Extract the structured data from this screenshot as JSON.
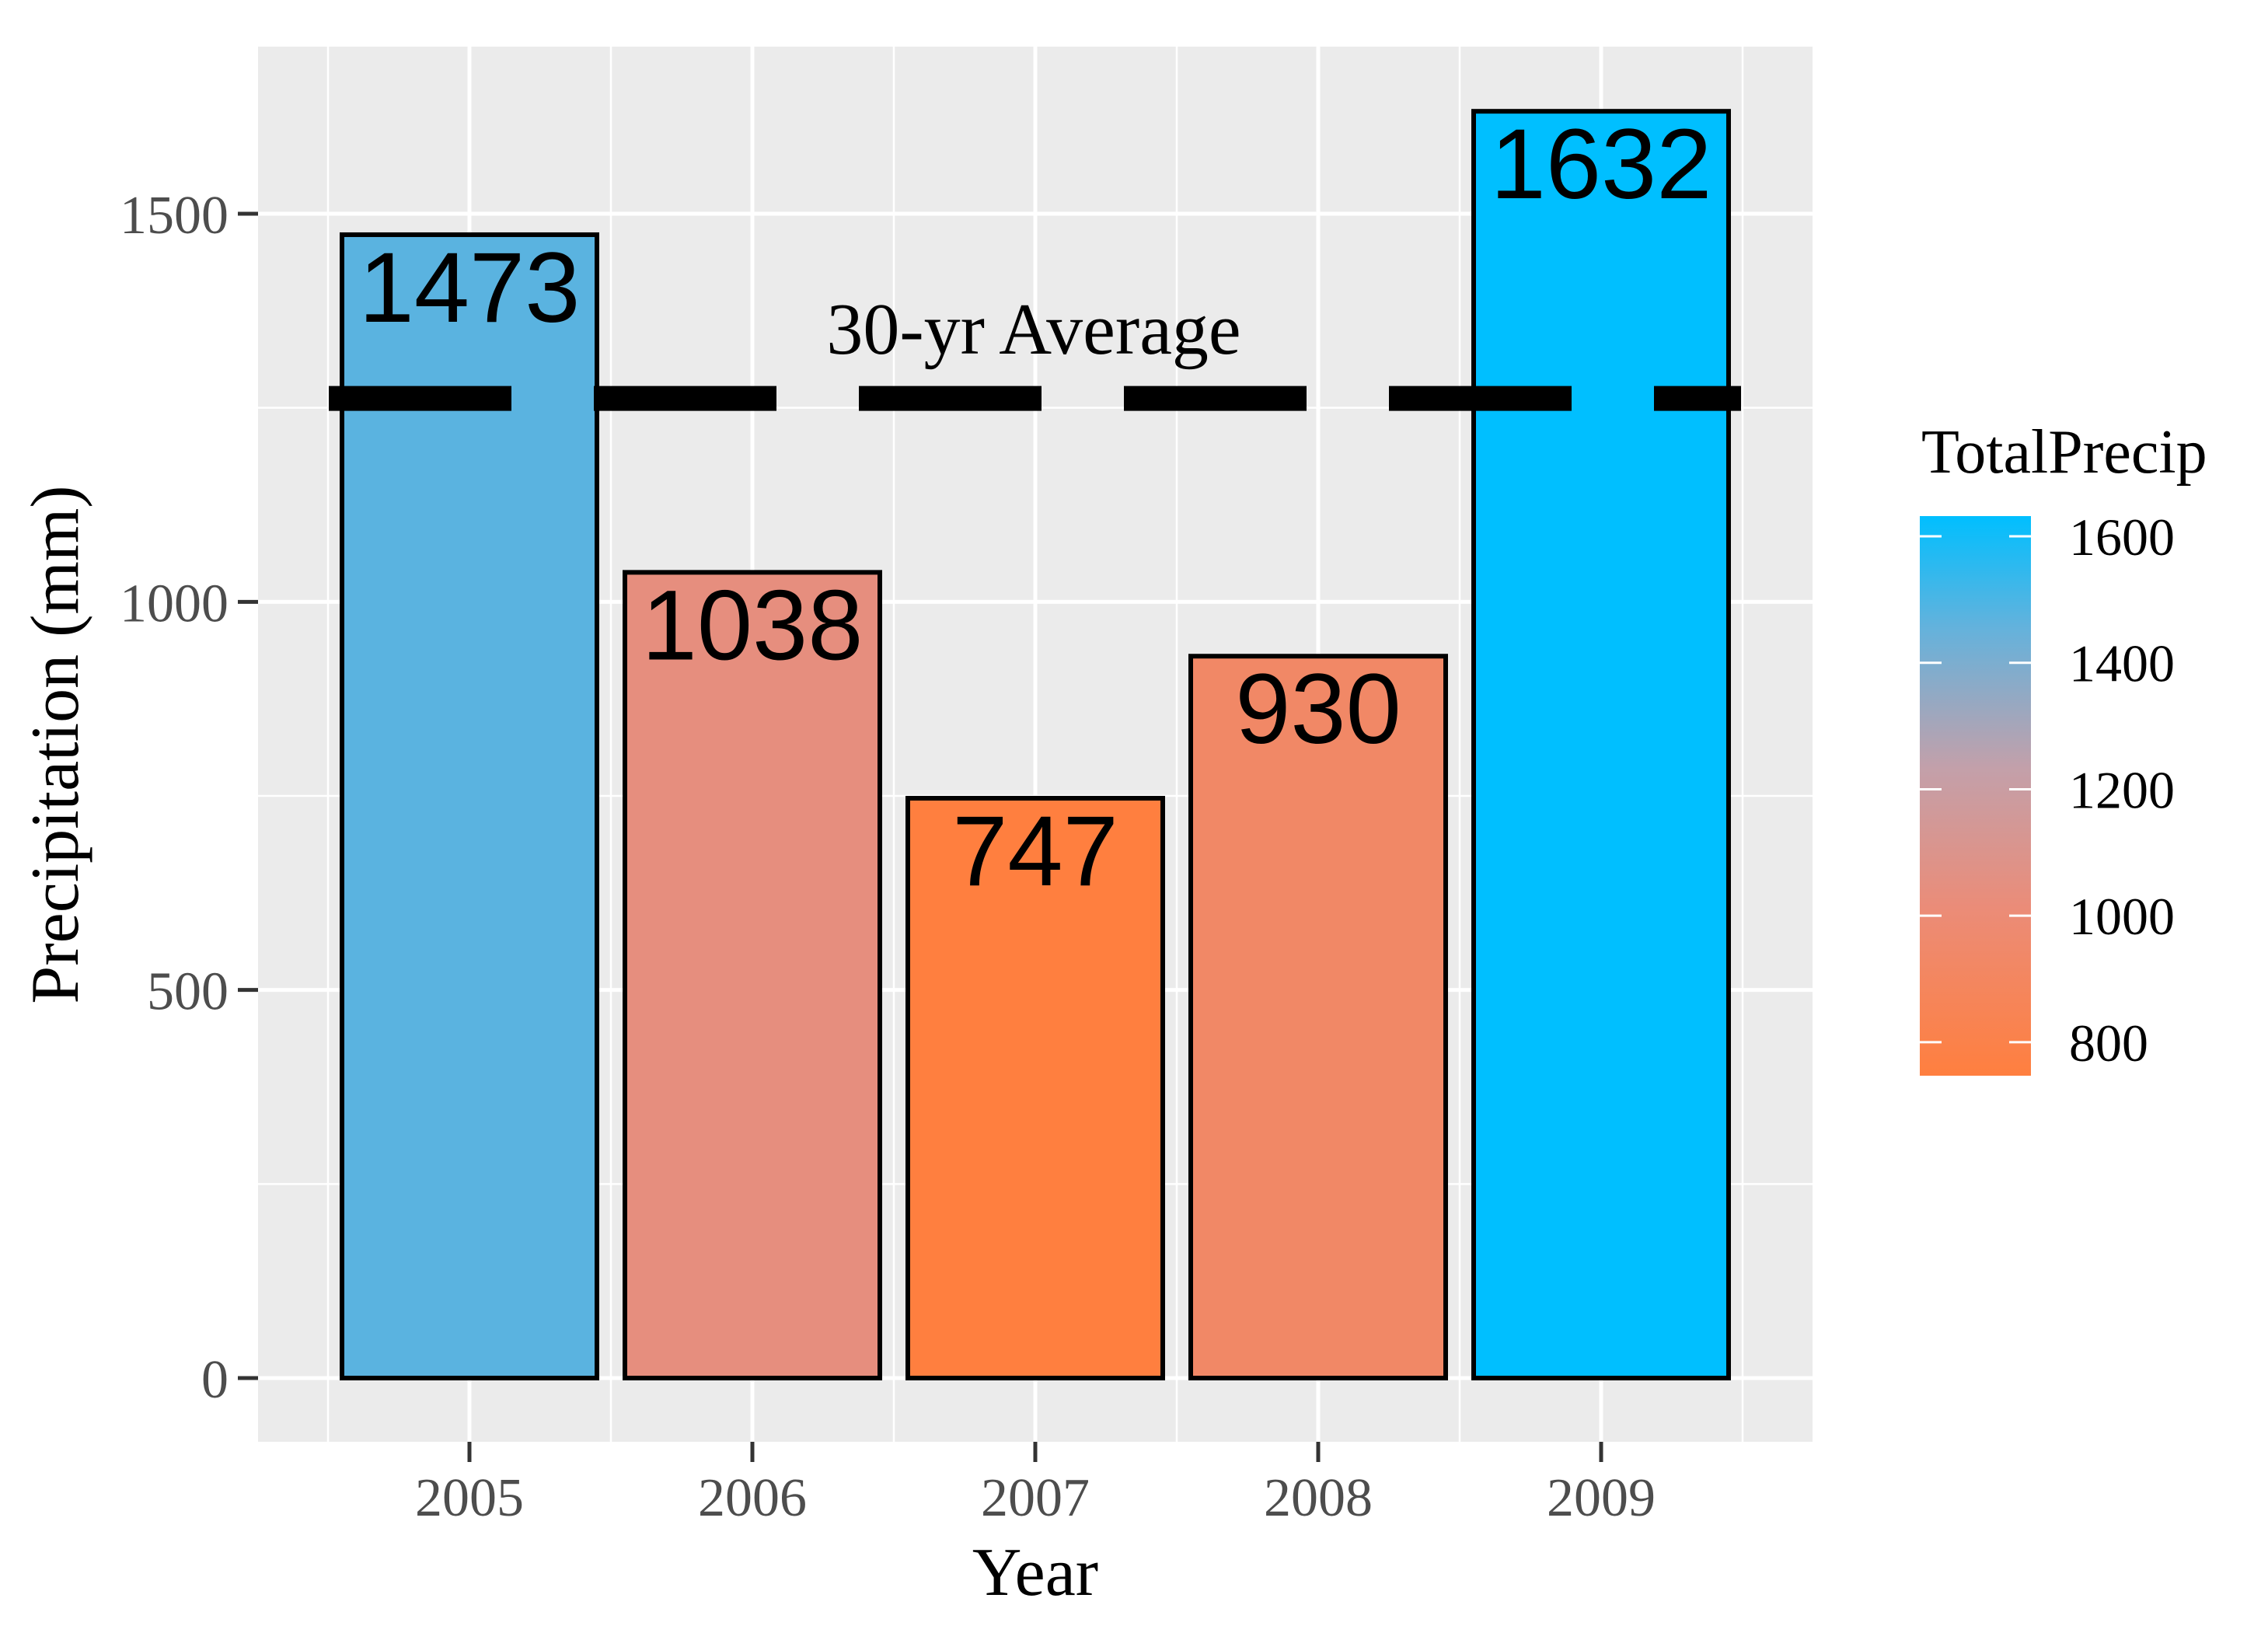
{
  "chart_data": {
    "type": "bar",
    "categories": [
      "2005",
      "2006",
      "2007",
      "2008",
      "2009"
    ],
    "values": [
      1473,
      1038,
      747,
      930,
      1632
    ],
    "data_labels": [
      "1473",
      "1038",
      "747",
      "930",
      "1632"
    ],
    "xlabel": "Year",
    "ylabel": "Precipitation (mm)",
    "ylim": [
      -85,
      1710
    ],
    "yticks": [
      0,
      500,
      1000,
      1500
    ],
    "ytick_labels": [
      "0",
      "500",
      "1000",
      "1500"
    ],
    "grid": true,
    "reference_line": {
      "value": 1262,
      "label": "30-yr Average",
      "style": "dashed"
    },
    "legend": {
      "title": "TotalPrecip",
      "type": "colorbar",
      "position": "right",
      "range": [
        747,
        1632
      ],
      "ticks": [
        800,
        1000,
        1200,
        1400,
        1600
      ],
      "tick_labels": [
        "800",
        "1000",
        "1200",
        "1400",
        "1600"
      ],
      "low_color": "#FF7F3F",
      "high_color": "#00BFFF"
    }
  }
}
